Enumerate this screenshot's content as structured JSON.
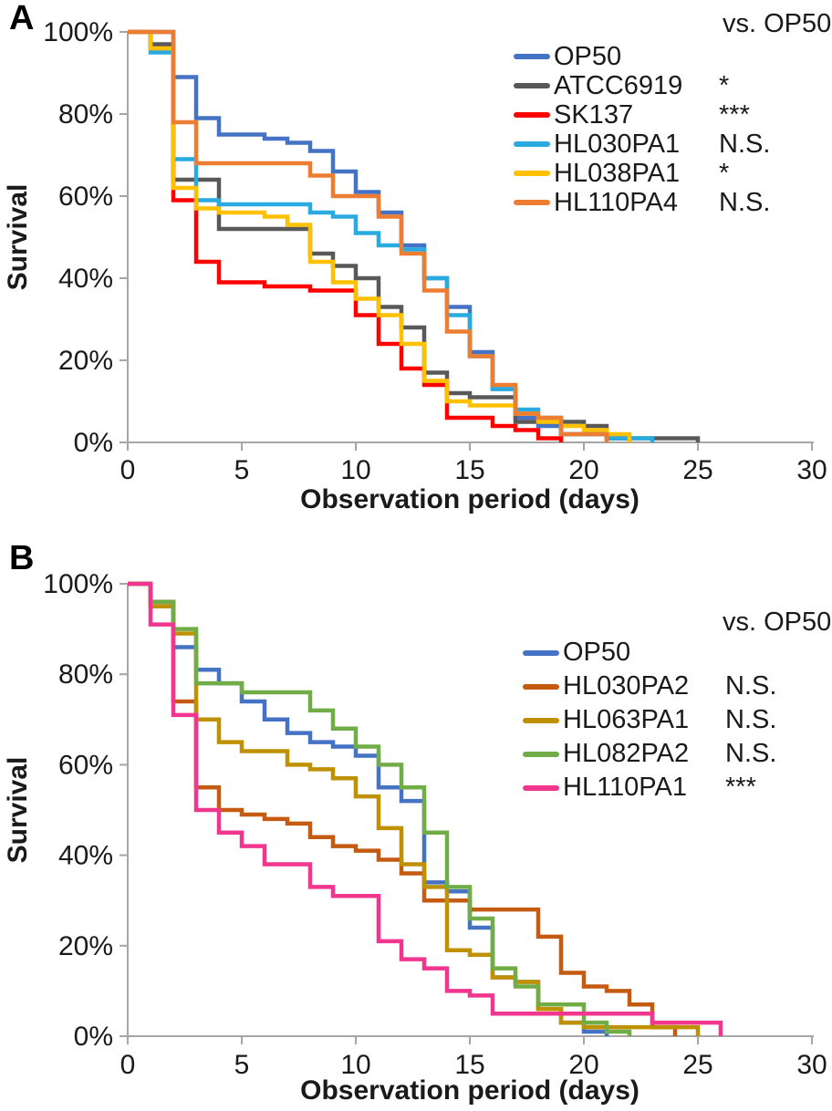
{
  "chart_data": [
    {
      "type": "line",
      "subtype": "kaplan-meier-step",
      "panel_label": "A",
      "xlabel": "Observation period (days)",
      "ylabel": "Survival",
      "legend_header": "vs. OP50",
      "xlim": [
        0,
        30
      ],
      "ylim": [
        0,
        100
      ],
      "x_ticks": [
        0,
        5,
        10,
        15,
        20,
        25,
        30
      ],
      "y_ticks": [
        "0%",
        "20%",
        "40%",
        "60%",
        "80%",
        "100%"
      ],
      "grid": false,
      "legend_position": "upper-right",
      "axis_color": "#A6A6A6",
      "series": [
        {
          "name": "OP50",
          "color": "#4472C4",
          "significance": "",
          "points": [
            [
              0,
              100
            ],
            [
              2,
              89
            ],
            [
              3,
              79
            ],
            [
              4,
              75
            ],
            [
              6,
              74
            ],
            [
              7,
              73
            ],
            [
              8,
              71
            ],
            [
              9,
              66
            ],
            [
              10,
              61
            ],
            [
              11,
              56
            ],
            [
              12,
              48
            ],
            [
              13,
              40
            ],
            [
              14,
              33
            ],
            [
              15,
              22
            ],
            [
              16,
              13
            ],
            [
              17,
              6
            ],
            [
              18,
              4
            ],
            [
              19,
              2
            ],
            [
              21,
              1
            ],
            [
              22,
              0
            ]
          ]
        },
        {
          "name": "ATCC6919",
          "color": "#595959",
          "significance": "*",
          "points": [
            [
              0,
              100
            ],
            [
              1,
              97
            ],
            [
              2,
              64
            ],
            [
              4,
              52
            ],
            [
              8,
              46
            ],
            [
              9,
              43
            ],
            [
              10,
              40
            ],
            [
              11,
              33
            ],
            [
              12,
              28
            ],
            [
              13,
              17
            ],
            [
              14,
              12
            ],
            [
              15,
              11
            ],
            [
              17,
              5
            ],
            [
              20,
              4
            ],
            [
              21,
              1
            ],
            [
              25,
              0
            ]
          ]
        },
        {
          "name": "SK137",
          "color": "#FF0000",
          "significance": "***",
          "points": [
            [
              0,
              100
            ],
            [
              1,
              96
            ],
            [
              2,
              59
            ],
            [
              3,
              44
            ],
            [
              4,
              39
            ],
            [
              6,
              38
            ],
            [
              8,
              37
            ],
            [
              10,
              31
            ],
            [
              11,
              24
            ],
            [
              12,
              18
            ],
            [
              13,
              14
            ],
            [
              14,
              6
            ],
            [
              16,
              4
            ],
            [
              17,
              3
            ],
            [
              18,
              1
            ],
            [
              19,
              0
            ]
          ]
        },
        {
          "name": "HL030PA1",
          "color": "#29ABE2",
          "significance": "N.S.",
          "points": [
            [
              0,
              100
            ],
            [
              1,
              95
            ],
            [
              2,
              69
            ],
            [
              3,
              59
            ],
            [
              4,
              58
            ],
            [
              8,
              56
            ],
            [
              9,
              55
            ],
            [
              10,
              51
            ],
            [
              11,
              48
            ],
            [
              12,
              47
            ],
            [
              13,
              40
            ],
            [
              14,
              31
            ],
            [
              15,
              21
            ],
            [
              16,
              13
            ],
            [
              17,
              8
            ],
            [
              18,
              6
            ],
            [
              19,
              2
            ],
            [
              21,
              1
            ],
            [
              23,
              0
            ]
          ]
        },
        {
          "name": "HL038PA1",
          "color": "#FFC000",
          "significance": "*",
          "points": [
            [
              0,
              100
            ],
            [
              1,
              96
            ],
            [
              2,
              62
            ],
            [
              3,
              57
            ],
            [
              4,
              56
            ],
            [
              6,
              55
            ],
            [
              7,
              53
            ],
            [
              8,
              44
            ],
            [
              9,
              39
            ],
            [
              10,
              35
            ],
            [
              11,
              31
            ],
            [
              12,
              24
            ],
            [
              13,
              15
            ],
            [
              14,
              10
            ],
            [
              15,
              9
            ],
            [
              17,
              7
            ],
            [
              18,
              5
            ],
            [
              19,
              4
            ],
            [
              20,
              3
            ],
            [
              21,
              2
            ],
            [
              22,
              0
            ]
          ]
        },
        {
          "name": "HL110PA4",
          "color": "#ED7D31",
          "significance": "N.S.",
          "points": [
            [
              0,
              100
            ],
            [
              2,
              78
            ],
            [
              3,
              68
            ],
            [
              8,
              65
            ],
            [
              9,
              60
            ],
            [
              11,
              55
            ],
            [
              12,
              46
            ],
            [
              13,
              37
            ],
            [
              14,
              27
            ],
            [
              15,
              21
            ],
            [
              16,
              14
            ],
            [
              17,
              7
            ],
            [
              18,
              6
            ],
            [
              19,
              2
            ],
            [
              21,
              0
            ]
          ]
        }
      ]
    },
    {
      "type": "line",
      "subtype": "kaplan-meier-step",
      "panel_label": "B",
      "xlabel": "Observation period (days)",
      "ylabel": "Survival",
      "legend_header": "vs. OP50",
      "xlim": [
        0,
        30
      ],
      "ylim": [
        0,
        100
      ],
      "x_ticks": [
        0,
        5,
        10,
        15,
        20,
        25,
        30
      ],
      "y_ticks": [
        "0%",
        "20%",
        "40%",
        "60%",
        "80%",
        "100%"
      ],
      "grid": false,
      "legend_position": "upper-right",
      "axis_color": "#A6A6A6",
      "series": [
        {
          "name": "OP50",
          "color": "#4472C4",
          "significance": "",
          "points": [
            [
              0,
              100
            ],
            [
              1,
              96
            ],
            [
              2,
              86
            ],
            [
              3,
              81
            ],
            [
              4,
              78
            ],
            [
              5,
              74
            ],
            [
              6,
              70
            ],
            [
              7,
              67
            ],
            [
              8,
              65
            ],
            [
              9,
              64
            ],
            [
              10,
              62
            ],
            [
              11,
              55
            ],
            [
              12,
              52
            ],
            [
              13,
              34
            ],
            [
              14,
              32
            ],
            [
              15,
              24
            ],
            [
              16,
              13
            ],
            [
              17,
              12
            ],
            [
              18,
              6
            ],
            [
              19,
              3
            ],
            [
              20,
              1
            ],
            [
              21,
              0
            ]
          ]
        },
        {
          "name": "HL030PA2",
          "color": "#C55A11",
          "significance": "N.S.",
          "points": [
            [
              0,
              100
            ],
            [
              1,
              96
            ],
            [
              2,
              74
            ],
            [
              3,
              55
            ],
            [
              4,
              50
            ],
            [
              5,
              49
            ],
            [
              6,
              48
            ],
            [
              7,
              47
            ],
            [
              8,
              44
            ],
            [
              9,
              42
            ],
            [
              10,
              41
            ],
            [
              11,
              39
            ],
            [
              12,
              36
            ],
            [
              13,
              30
            ],
            [
              15,
              28
            ],
            [
              18,
              22
            ],
            [
              19,
              14
            ],
            [
              20,
              11
            ],
            [
              21,
              10
            ],
            [
              22,
              7
            ],
            [
              23,
              2
            ],
            [
              24,
              0
            ]
          ]
        },
        {
          "name": "HL063PA1",
          "color": "#BF9000",
          "significance": "N.S.",
          "points": [
            [
              0,
              100
            ],
            [
              1,
              95
            ],
            [
              2,
              89
            ],
            [
              3,
              70
            ],
            [
              4,
              65
            ],
            [
              5,
              63
            ],
            [
              7,
              60
            ],
            [
              8,
              59
            ],
            [
              9,
              57
            ],
            [
              10,
              53
            ],
            [
              11,
              46
            ],
            [
              12,
              38
            ],
            [
              13,
              33
            ],
            [
              14,
              19
            ],
            [
              15,
              18
            ],
            [
              16,
              13
            ],
            [
              17,
              12
            ],
            [
              18,
              6
            ],
            [
              19,
              3
            ],
            [
              20,
              2
            ],
            [
              25,
              0
            ]
          ]
        },
        {
          "name": "HL082PA2",
          "color": "#70AD47",
          "significance": "N.S.",
          "points": [
            [
              0,
              100
            ],
            [
              1,
              96
            ],
            [
              2,
              90
            ],
            [
              3,
              78
            ],
            [
              5,
              76
            ],
            [
              8,
              72
            ],
            [
              9,
              68
            ],
            [
              10,
              64
            ],
            [
              11,
              60
            ],
            [
              12,
              55
            ],
            [
              13,
              45
            ],
            [
              14,
              33
            ],
            [
              15,
              26
            ],
            [
              16,
              15
            ],
            [
              17,
              11
            ],
            [
              18,
              7
            ],
            [
              20,
              3
            ],
            [
              21,
              1
            ],
            [
              22,
              0
            ]
          ]
        },
        {
          "name": "HL110PA1",
          "color": "#F0368E",
          "significance": "***",
          "points": [
            [
              0,
              100
            ],
            [
              1,
              91
            ],
            [
              2,
              71
            ],
            [
              3,
              50
            ],
            [
              4,
              45
            ],
            [
              5,
              42
            ],
            [
              6,
              38
            ],
            [
              8,
              33
            ],
            [
              9,
              31
            ],
            [
              11,
              21
            ],
            [
              12,
              17
            ],
            [
              13,
              15
            ],
            [
              14,
              10
            ],
            [
              15,
              9
            ],
            [
              16,
              5
            ],
            [
              23,
              3
            ],
            [
              26,
              0
            ]
          ]
        }
      ]
    }
  ]
}
